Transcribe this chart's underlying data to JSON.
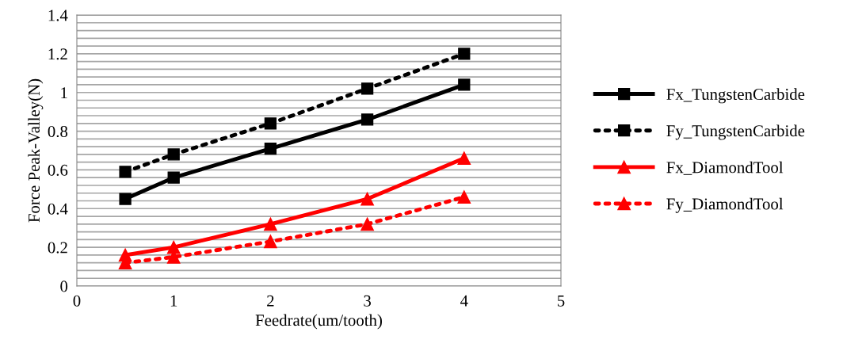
{
  "chart_data": {
    "type": "line",
    "xlabel": "Feedrate(um/tooth)",
    "ylabel": "Force Peak-Valley(N)",
    "x": [
      0.5,
      1,
      2,
      3,
      4
    ],
    "series": [
      {
        "name": "Fx_TungstenCarbide",
        "color": "#000000",
        "marker": "square",
        "line_style": "solid",
        "values": [
          0.45,
          0.56,
          0.71,
          0.86,
          1.04
        ]
      },
      {
        "name": "Fy_TungstenCarbide",
        "color": "#000000",
        "marker": "square",
        "line_style": "dotted",
        "values": [
          0.59,
          0.68,
          0.84,
          1.02,
          1.2
        ]
      },
      {
        "name": "Fx_DiamondTool",
        "color": "#ff0000",
        "marker": "triangle",
        "line_style": "solid",
        "values": [
          0.16,
          0.2,
          0.32,
          0.45,
          0.66
        ]
      },
      {
        "name": "Fy_DiamondTool",
        "color": "#ff0000",
        "marker": "triangle",
        "line_style": "dotted",
        "values": [
          0.12,
          0.15,
          0.23,
          0.32,
          0.46
        ]
      }
    ],
    "xlim": [
      0,
      5
    ],
    "xticks": [
      0,
      1,
      2,
      3,
      4,
      5
    ],
    "ylim": [
      0,
      1.4
    ],
    "yticks": [
      0,
      {
        "value": 0.04,
        "label": null
      },
      {
        "value": 0.08,
        "label": null
      },
      {
        "value": 0.12,
        "label": null
      },
      {
        "value": 0.16,
        "label": null
      },
      0.2,
      {
        "value": 0.24,
        "label": null
      },
      {
        "value": 0.28,
        "label": null
      },
      {
        "value": 0.32,
        "label": null
      },
      {
        "value": 0.36,
        "label": null
      },
      0.4,
      {
        "value": 0.44,
        "label": null
      },
      {
        "value": 0.48,
        "label": null
      },
      {
        "value": 0.52,
        "label": null
      },
      {
        "value": 0.56,
        "label": null
      },
      0.6,
      {
        "value": 0.64,
        "label": null
      },
      {
        "value": 0.68,
        "label": null
      },
      {
        "value": 0.72,
        "label": null
      },
      {
        "value": 0.76,
        "label": null
      },
      0.8,
      {
        "value": 0.84,
        "label": null
      },
      {
        "value": 0.88,
        "label": null
      },
      {
        "value": 0.92,
        "label": null
      },
      {
        "value": 0.96,
        "label": null
      },
      1,
      {
        "value": 1.04,
        "label": null
      },
      {
        "value": 1.08,
        "label": null
      },
      {
        "value": 1.12,
        "label": null
      },
      {
        "value": 1.16,
        "label": null
      },
      1.2,
      {
        "value": 1.24,
        "label": null
      },
      {
        "value": 1.28,
        "label": null
      },
      {
        "value": 1.32,
        "label": null
      },
      {
        "value": 1.36,
        "label": null
      },
      1.4
    ],
    "grid": "y",
    "legend": "right"
  }
}
